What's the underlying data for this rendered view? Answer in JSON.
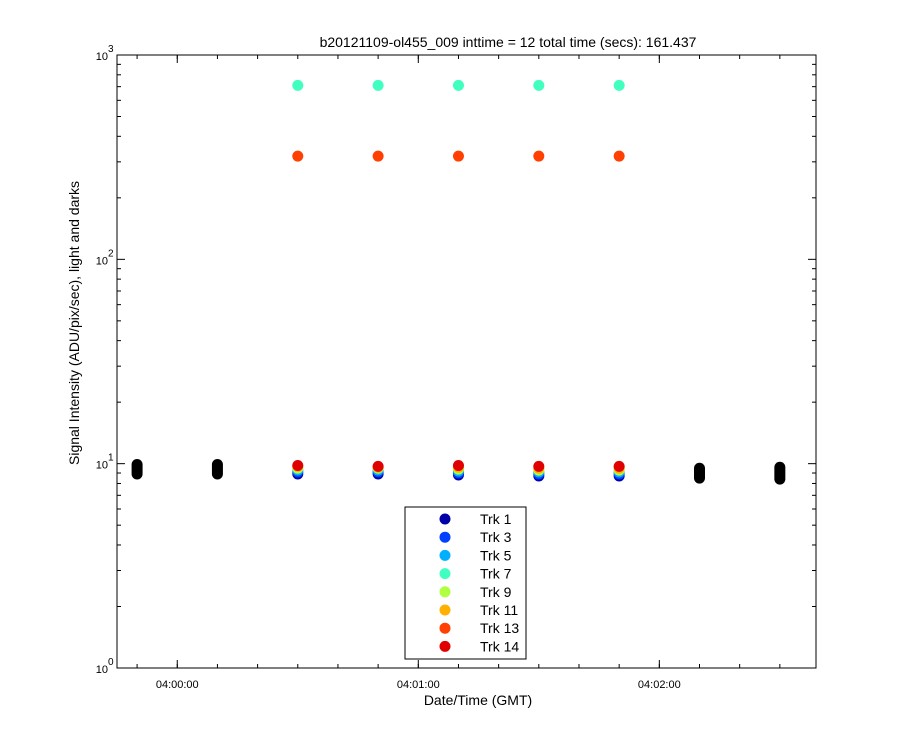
{
  "chart_data": {
    "type": "scatter",
    "title": "b20121109-ol455_009 inttime = 12 total time (secs): 161.437",
    "xlabel": "Date/Time (GMT)",
    "ylabel": "Signal Intensity (ADU/pix/sec), light and darks",
    "yscale": "log",
    "ylim": [
      1,
      1000
    ],
    "xlim": [
      "03:59:45",
      "04:02:39"
    ],
    "x_ticks": [
      "04:00:00",
      "04:01:00",
      "04:02:00"
    ],
    "y_ticks": [
      {
        "base": "10",
        "exp": "0",
        "value": 1
      },
      {
        "base": "10",
        "exp": "1",
        "value": 10
      },
      {
        "base": "10",
        "exp": "2",
        "value": 100
      },
      {
        "base": "10",
        "exp": "3",
        "value": 1000
      }
    ],
    "legend_position": "bottom-center",
    "series": [
      {
        "name": "Trk 1",
        "color": "#0000a8",
        "x": [
          "04:00:30",
          "04:00:50",
          "04:01:10",
          "04:01:30",
          "04:01:50"
        ],
        "y": [
          8.9,
          8.9,
          8.8,
          8.7,
          8.7
        ]
      },
      {
        "name": "Trk 3",
        "color": "#0040ff",
        "x": [
          "04:00:30",
          "04:00:50",
          "04:01:10",
          "04:01:30",
          "04:01:50"
        ],
        "y": [
          9.1,
          9.1,
          9.0,
          8.9,
          8.9
        ]
      },
      {
        "name": "Trk 5",
        "color": "#00b0ff",
        "x": [
          "04:00:30",
          "04:00:50",
          "04:01:10",
          "04:01:30",
          "04:01:50"
        ],
        "y": [
          9.3,
          9.3,
          9.2,
          9.1,
          9.1
        ]
      },
      {
        "name": "Trk 7",
        "color": "#40ffc0",
        "x": [
          "04:00:30",
          "04:00:50",
          "04:01:10",
          "04:01:30",
          "04:01:50"
        ],
        "y": [
          710,
          710,
          710,
          710,
          710
        ]
      },
      {
        "name": "Trk 9",
        "color": "#b0ff40",
        "x": [
          "04:00:30",
          "04:00:50",
          "04:01:10",
          "04:01:30",
          "04:01:50"
        ],
        "y": [
          9.5,
          9.5,
          9.4,
          9.3,
          9.3
        ]
      },
      {
        "name": "Trk 11",
        "color": "#ffb000",
        "x": [
          "04:00:30",
          "04:00:50",
          "04:01:10",
          "04:01:30",
          "04:01:50"
        ],
        "y": [
          9.7,
          9.6,
          9.6,
          9.5,
          9.5
        ]
      },
      {
        "name": "Trk 13",
        "color": "#ff4000",
        "x": [
          "04:00:30",
          "04:00:50",
          "04:01:10",
          "04:01:30",
          "04:01:50"
        ],
        "y": [
          320,
          320,
          320,
          320,
          320
        ]
      },
      {
        "name": "Trk 14",
        "color": "#e00000",
        "x": [
          "04:00:30",
          "04:00:50",
          "04:01:10",
          "04:01:30",
          "04:01:50"
        ],
        "y": [
          9.8,
          9.7,
          9.8,
          9.7,
          9.7
        ]
      }
    ],
    "dark_points": {
      "color": "#000000",
      "x": [
        "03:59:50",
        "04:00:10",
        "04:02:10",
        "04:02:30"
      ],
      "y_min": [
        8.9,
        8.9,
        8.5,
        8.4
      ],
      "y_max": [
        9.9,
        9.9,
        9.5,
        9.6
      ]
    }
  }
}
